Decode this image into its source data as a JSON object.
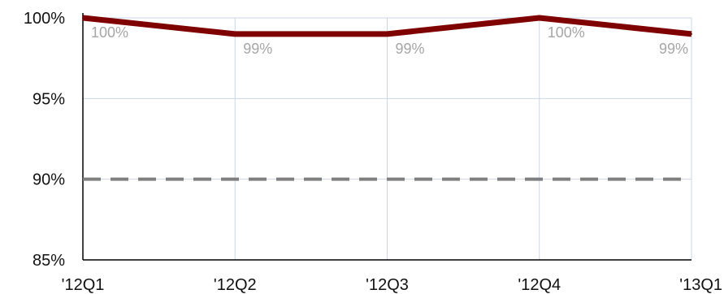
{
  "chart_data": {
    "type": "line",
    "categories": [
      "'12Q1",
      "'12Q2",
      "'12Q3",
      "'12Q4",
      "'13Q1"
    ],
    "series": [
      {
        "values": [
          100,
          99,
          99,
          100,
          99
        ],
        "data_labels": [
          "100%",
          "99%",
          "99%",
          "100%",
          "99%"
        ],
        "color": "#7f0000"
      }
    ],
    "reference_line": {
      "value": 90,
      "style": "dashed",
      "color": "#7f7f7f"
    },
    "ylim": [
      85,
      100
    ],
    "yticks": [
      100,
      95,
      90,
      85
    ],
    "ytick_labels": [
      "100%",
      "95%",
      "90%",
      "85%"
    ],
    "title": "",
    "xlabel": "",
    "ylabel": "",
    "grid": true,
    "legend": "none"
  }
}
